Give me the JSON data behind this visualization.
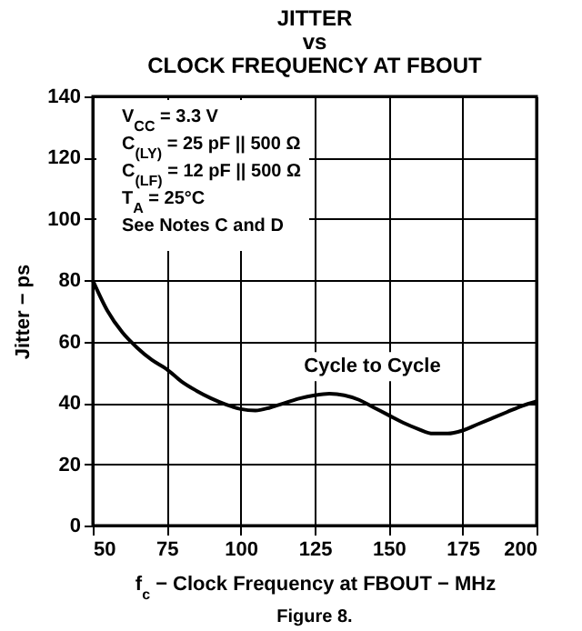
{
  "chart_data": {
    "type": "line",
    "title": "JITTER\nvs\nCLOCK FREQUENCY AT FBOUT",
    "xlabel": "f$_{c}$ − Clock Frequency at FBOUT − MHz",
    "ylabel": "Jitter − ps",
    "x": [
      50,
      55,
      60,
      65,
      70,
      75,
      80,
      85,
      90,
      95,
      100,
      105,
      110,
      115,
      120,
      125,
      130,
      135,
      140,
      145,
      150,
      155,
      160,
      165,
      170,
      175,
      180,
      185,
      190,
      195,
      200
    ],
    "series": [
      {
        "name": "Cycle to Cycle",
        "color": "#000000",
        "values": [
          80,
          70,
          63,
          58,
          54,
          51,
          47,
          44,
          41.5,
          39.5,
          38,
          37.5,
          38.5,
          40,
          41.5,
          42.5,
          43,
          42.5,
          41,
          38.5,
          36,
          33.5,
          31.5,
          30,
          30,
          31,
          33,
          35,
          37,
          39,
          40.5
        ]
      }
    ],
    "xlim": [
      50,
      200
    ],
    "xticks": [
      50,
      75,
      100,
      125,
      150,
      175,
      200
    ],
    "ylim": [
      0,
      140
    ],
    "yticks": [
      0,
      20,
      40,
      60,
      80,
      100,
      120,
      140
    ],
    "grid": true,
    "legend": false,
    "marker": "none",
    "line_style": "solid",
    "annotations": [
      "V$_{CC}$ = 3.3 V",
      "C$_{(LY)}$ = 25 pF || 500 Ω",
      "C$_{(LF)}$ = 12 pF || 500 Ω",
      "T$_{A}$ = 25°C",
      "See Notes C and D",
      "Figure 8."
    ]
  }
}
